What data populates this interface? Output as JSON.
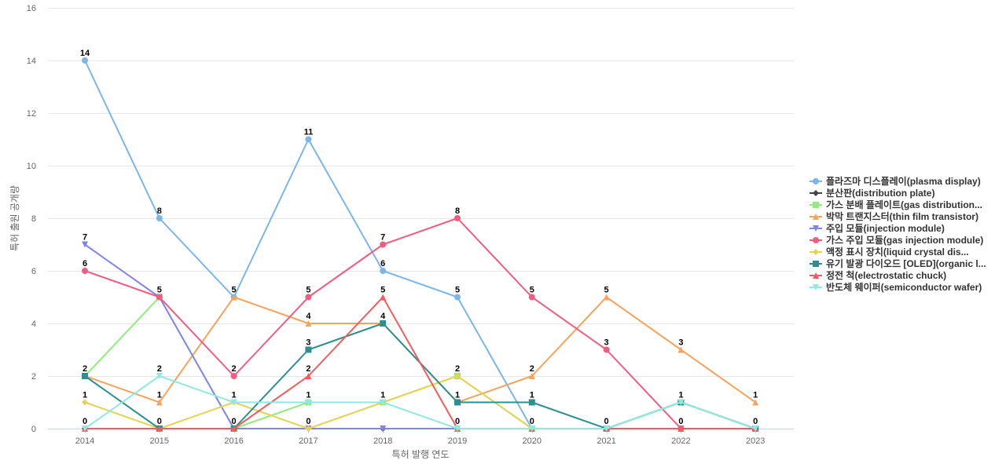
{
  "chart_data": {
    "type": "line",
    "title": "",
    "xlabel": "특허 발행 연도",
    "ylabel": "특허 출원 공개량",
    "ylim": [
      0,
      16
    ],
    "yticks": [
      0,
      2,
      4,
      6,
      8,
      10,
      12,
      14,
      16
    ],
    "grid": true,
    "legend_position": "right",
    "categories": [
      "2014",
      "2015",
      "2016",
      "2017",
      "2018",
      "2019",
      "2020",
      "2021",
      "2022",
      "2023"
    ],
    "series": [
      {
        "name": "플라즈마 디스플레이(plasma display)",
        "color": "#7cb5ec",
        "marker": "circle",
        "values": [
          14,
          8,
          5,
          11,
          6,
          5,
          0,
          0,
          0,
          0
        ]
      },
      {
        "name": "분산판(distribution plate)",
        "color": "#434348",
        "marker": "diamond",
        "values": [
          0,
          0,
          0,
          0,
          0,
          0,
          0,
          0,
          0,
          0
        ]
      },
      {
        "name": "가스 분배 플레이트(gas distribution...",
        "color": "#90ed7d",
        "marker": "square",
        "values": [
          2,
          5,
          0,
          1,
          1,
          2,
          0,
          0,
          1,
          0
        ]
      },
      {
        "name": "박막 트랜지스터(thin film transistor)",
        "color": "#f7a35c",
        "marker": "triangle",
        "values": [
          2,
          1,
          5,
          4,
          4,
          1,
          2,
          5,
          3,
          1
        ]
      },
      {
        "name": "주입 모듈(injection module)",
        "color": "#8085e9",
        "marker": "triangle-down",
        "values": [
          7,
          5,
          0,
          0,
          0,
          0,
          0,
          0,
          0,
          0
        ]
      },
      {
        "name": "가스 주입 모듈(gas injection module)",
        "color": "#f15c80",
        "marker": "circle",
        "values": [
          6,
          5,
          2,
          5,
          7,
          8,
          5,
          3,
          0,
          0
        ]
      },
      {
        "name": "액정 표시 장치(liquid crystal dis...",
        "color": "#e4d354",
        "marker": "diamond",
        "values": [
          1,
          0,
          1,
          0,
          1,
          2,
          0,
          0,
          1,
          0
        ]
      },
      {
        "name": "유기 발광 다이오드 [OLED](organic l...",
        "color": "#2b908f",
        "marker": "square",
        "values": [
          2,
          0,
          0,
          3,
          4,
          1,
          1,
          0,
          1,
          0
        ]
      },
      {
        "name": "정전 척(electrostatic chuck)",
        "color": "#f45b5b",
        "marker": "triangle",
        "values": [
          0,
          0,
          0,
          2,
          5,
          0,
          0,
          0,
          0,
          0
        ]
      },
      {
        "name": "반도체 웨이퍼(semiconductor wafer)",
        "color": "#91e8e1",
        "marker": "triangle-down",
        "values": [
          0,
          2,
          1,
          1,
          1,
          0,
          0,
          0,
          1,
          0
        ]
      }
    ],
    "data_labels": [
      {
        "x": "2014",
        "values": [
          "14",
          "7",
          "6",
          "2",
          "1",
          "0"
        ]
      },
      {
        "x": "2015",
        "values": [
          "8",
          "5",
          "2",
          "1",
          "0"
        ]
      },
      {
        "x": "2016",
        "values": [
          "5",
          "2",
          "1",
          "0"
        ]
      },
      {
        "x": "2017",
        "values": [
          "11",
          "5",
          "4",
          "3",
          "2",
          "1",
          "0"
        ]
      },
      {
        "x": "2018",
        "values": [
          "7",
          "6",
          "5",
          "4",
          "1"
        ]
      },
      {
        "x": "2019",
        "values": [
          "8",
          "5",
          "2",
          "1",
          "0"
        ]
      },
      {
        "x": "2020",
        "values": [
          "5",
          "2",
          "1",
          "0"
        ]
      },
      {
        "x": "2021",
        "values": [
          "5",
          "3",
          "0"
        ]
      },
      {
        "x": "2022",
        "values": [
          "3",
          "1",
          "0"
        ]
      },
      {
        "x": "2023",
        "values": [
          "1",
          "0"
        ]
      }
    ]
  }
}
